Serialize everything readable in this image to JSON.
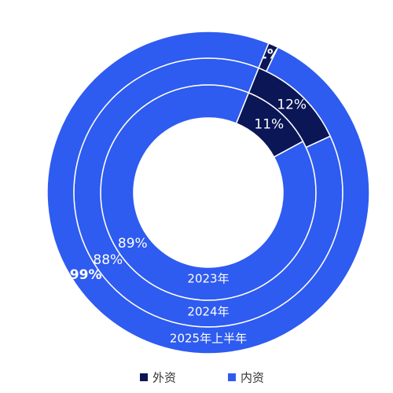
{
  "chart_data": {
    "type": "donut",
    "categories": [
      "2023年",
      "2024年",
      "2025年上半年"
    ],
    "series": [
      {
        "name": "外资",
        "color": "#0b1657",
        "values": [
          11,
          12,
          1
        ],
        "value_labels": [
          "11%",
          "12%",
          "1%"
        ]
      },
      {
        "name": "内资",
        "color": "#2e5bf0",
        "values": [
          89,
          88,
          99
        ],
        "value_labels": [
          "89%",
          "88%",
          "99%"
        ]
      }
    ]
  }
}
